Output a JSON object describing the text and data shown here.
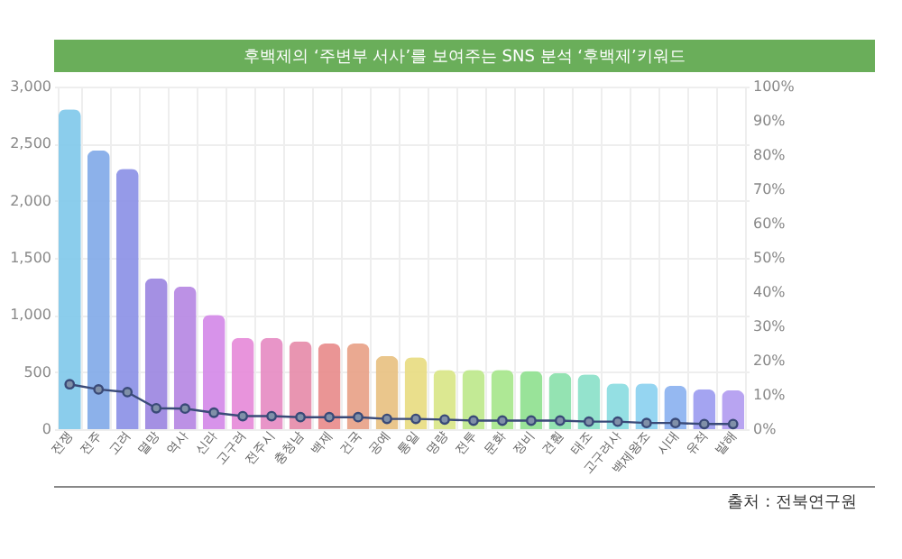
{
  "chart_data": {
    "type": "bar",
    "title": "후백제의 ‘주변부 서사’를 보여주는 SNS 분석 ‘후백제’키워드",
    "categories": [
      "전쟁",
      "전주",
      "고려",
      "멸망",
      "역사",
      "신라",
      "고구려",
      "전주시",
      "충청남",
      "백제",
      "건국",
      "공예",
      "통일",
      "명량",
      "전투",
      "문화",
      "정비",
      "견훤",
      "태조",
      "고구려사",
      "백제왕조",
      "시대",
      "유적",
      "발해"
    ],
    "series": [
      {
        "colors": [
          "#7ec8ea",
          "#7fa9e8",
          "#8a8fe6",
          "#9a84e0",
          "#b585e2",
          "#d387e8",
          "#e688d8",
          "#e68ac2",
          "#e68aa8",
          "#e88a8a",
          "#e8a085",
          "#e8c080",
          "#e8dc80",
          "#d8e685",
          "#bde88a",
          "#a5e68a",
          "#8ee08e",
          "#88e0aa",
          "#88e0c8",
          "#88dce0",
          "#8ad0f0",
          "#8ab0f0",
          "#9a9af0",
          "#b09af0"
        ],
        "values": [
          2800,
          2440,
          2280,
          1320,
          1250,
          1000,
          800,
          800,
          770,
          750,
          750,
          640,
          630,
          520,
          520,
          520,
          510,
          490,
          480,
          400,
          400,
          380,
          350,
          340
        ]
      },
      {
        "type": "line",
        "axis": "y2",
        "color": "#3a4a78",
        "values": [
          13.1,
          11.6,
          10.8,
          6.1,
          6.0,
          4.8,
          3.8,
          3.8,
          3.5,
          3.5,
          3.5,
          3.0,
          3.0,
          2.8,
          2.5,
          2.5,
          2.5,
          2.5,
          2.2,
          2.2,
          1.8,
          1.8,
          1.5,
          1.5
        ]
      }
    ],
    "ylim": [
      0,
      3000
    ],
    "yticks": [
      {
        "value": 0,
        "label": "0"
      },
      {
        "value": 500,
        "label": "500"
      },
      {
        "value": 1000,
        "label": "1,000"
      },
      {
        "value": 1500,
        "label": "1,500"
      },
      {
        "value": 2000,
        "label": "2,000"
      },
      {
        "value": 2500,
        "label": "2,500"
      },
      {
        "value": 3000,
        "label": "3,000"
      }
    ],
    "y2lim": [
      0,
      100
    ],
    "y2ticks": [
      {
        "value": 0,
        "label": "0%"
      },
      {
        "value": 10,
        "label": "10%"
      },
      {
        "value": 20,
        "label": "20%"
      },
      {
        "value": 30,
        "label": "30%"
      },
      {
        "value": 40,
        "label": "40%"
      },
      {
        "value": 50,
        "label": "50%"
      },
      {
        "value": 60,
        "label": "60%"
      },
      {
        "value": 70,
        "label": "70%"
      },
      {
        "value": 80,
        "label": "80%"
      },
      {
        "value": 90,
        "label": "90%"
      },
      {
        "value": 100,
        "label": "100%"
      }
    ],
    "grid": true,
    "marker": "circle",
    "annotations": [
      "출처 : 전북연구원"
    ]
  }
}
